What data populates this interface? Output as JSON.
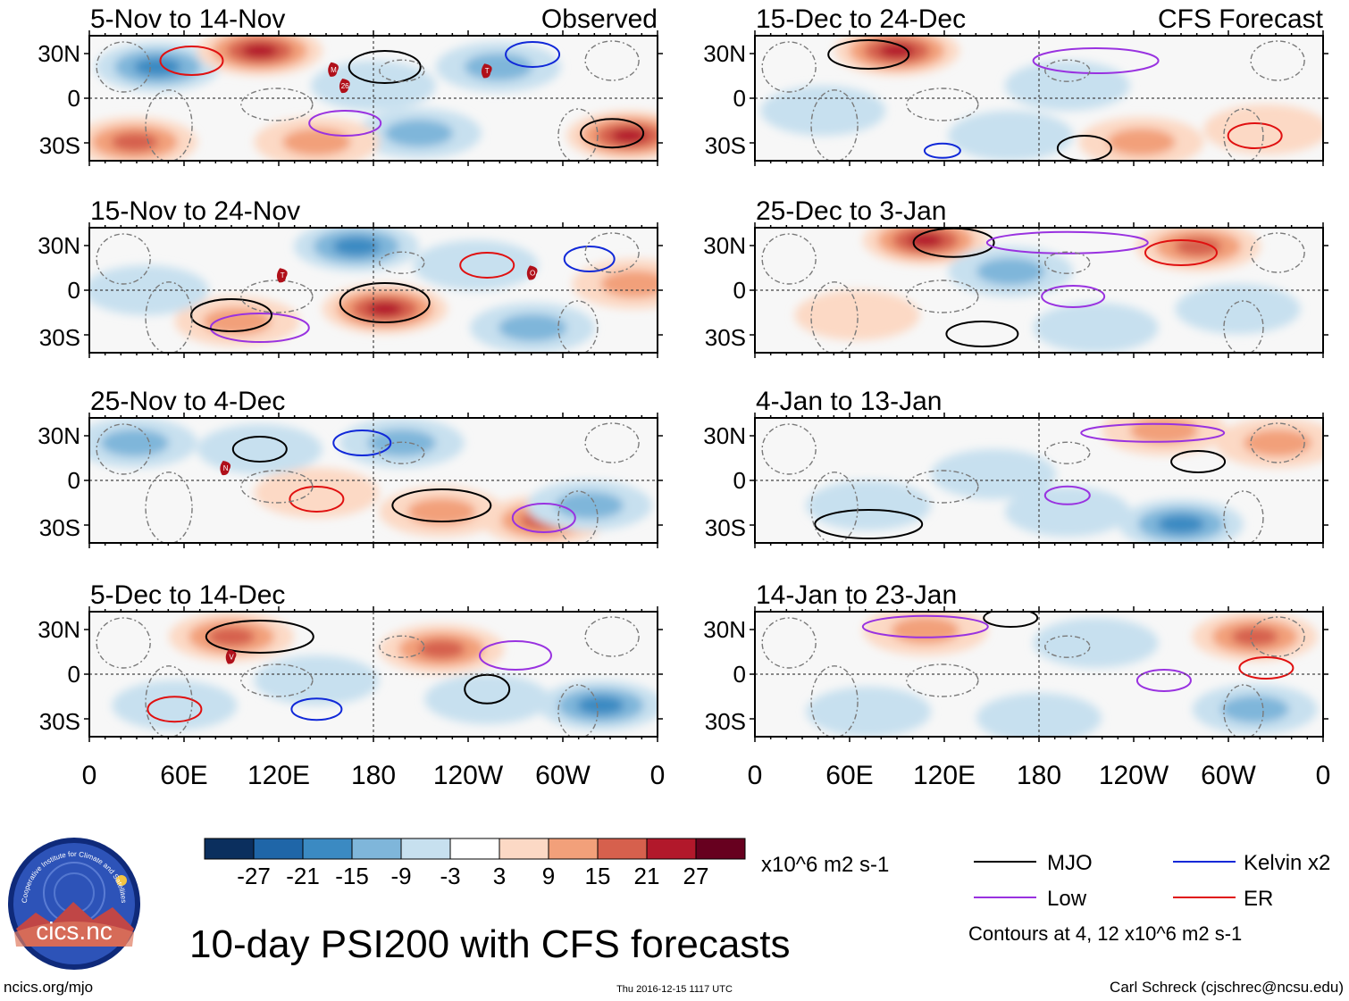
{
  "title": "10-day PSI200 with CFS forecasts",
  "left_column_label": "Observed",
  "right_column_label": "CFS Forecast",
  "panels": [
    {
      "period": "5-Nov to 14-Nov",
      "column": "left",
      "row": 0
    },
    {
      "period": "15-Nov to 24-Nov",
      "column": "left",
      "row": 1
    },
    {
      "period": "25-Nov to 4-Dec",
      "column": "left",
      "row": 2
    },
    {
      "period": "5-Dec to 14-Dec",
      "column": "left",
      "row": 3
    },
    {
      "period": "15-Dec to 24-Dec",
      "column": "right",
      "row": 0
    },
    {
      "period": "25-Dec to 3-Jan",
      "column": "right",
      "row": 1
    },
    {
      "period": "4-Jan to 13-Jan",
      "column": "right",
      "row": 2
    },
    {
      "period": "14-Jan to 23-Jan",
      "column": "right",
      "row": 3
    }
  ],
  "lat_labels": [
    "30N",
    "0",
    "30S"
  ],
  "lon_labels": [
    "0",
    "60E",
    "120E",
    "180",
    "120W",
    "60W",
    "0"
  ],
  "colorbar": {
    "ticks": [
      "-27",
      "-21",
      "-15",
      "-9",
      "-3",
      "3",
      "9",
      "15",
      "21",
      "27"
    ],
    "colors": [
      "#0b2f5e",
      "#1f66a8",
      "#3b8ac2",
      "#7fb6da",
      "#c7e0ef",
      "#ffffff",
      "#fcd9c5",
      "#f2a07a",
      "#d6604d",
      "#b2182b",
      "#67001f"
    ],
    "units": "x10^6 m2 s-1"
  },
  "legend": {
    "items": [
      {
        "label": "MJO",
        "color": "#000000"
      },
      {
        "label": "Kelvin x2",
        "color": "#1028d8"
      },
      {
        "label": "Low",
        "color": "#9932e0"
      },
      {
        "label": "ER",
        "color": "#e01010"
      }
    ],
    "note": "Contours at 4, 12 x10^6 m2 s-1"
  },
  "logo": {
    "text": "cics.nc",
    "ring_text": "Cooperative Institute for Climate and Satellites"
  },
  "footer": {
    "left": "ncics.org/mjo",
    "center": "Thu 2016-12-15 1117 UTC",
    "right": "Carl Schreck (cjschrec@ncsu.edu)"
  },
  "storm_markers": [
    {
      "panel": 0,
      "label": "M"
    },
    {
      "panel": 0,
      "label": "26"
    },
    {
      "panel": 0,
      "label": "T"
    },
    {
      "panel": 1,
      "label": "T"
    },
    {
      "panel": 1,
      "label": "O"
    },
    {
      "panel": 2,
      "label": "N"
    },
    {
      "panel": 3,
      "label": "V"
    }
  ]
}
